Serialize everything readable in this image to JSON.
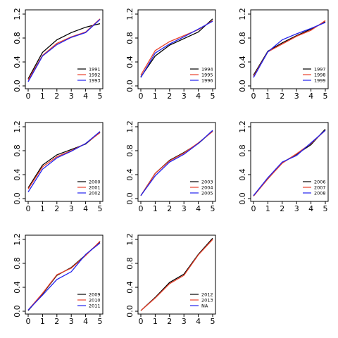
{
  "chart_data": [
    {
      "type": "line",
      "x": [
        0,
        1,
        2,
        3,
        4,
        5
      ],
      "xlim": [
        0,
        5
      ],
      "ylim": [
        0,
        1.2
      ],
      "xticks": [
        "0",
        "1",
        "2",
        "3",
        "4",
        "5"
      ],
      "yticks": [
        "0.0",
        "0.4",
        "0.8",
        "1.2"
      ],
      "legend_position": "bottom-right",
      "series": [
        {
          "name": "1991",
          "color": "#000000",
          "values": [
            0.12,
            0.56,
            0.77,
            0.89,
            0.98,
            1.04
          ]
        },
        {
          "name": "1992",
          "color": "#e8412b",
          "values": [
            0.1,
            0.51,
            0.71,
            0.82,
            0.9,
            1.12
          ]
        },
        {
          "name": "1993",
          "color": "#2222ee",
          "values": [
            0.07,
            0.5,
            0.69,
            0.81,
            0.89,
            1.11
          ]
        }
      ]
    },
    {
      "type": "line",
      "x": [
        0,
        1,
        2,
        3,
        4,
        5
      ],
      "xlim": [
        0,
        5
      ],
      "ylim": [
        0,
        1.2
      ],
      "xticks": [
        "0",
        "1",
        "2",
        "3",
        "4",
        "5"
      ],
      "yticks": [
        "0.0",
        "0.4",
        "0.8",
        "1.2"
      ],
      "legend_position": "bottom-right",
      "series": [
        {
          "name": "1994",
          "color": "#000000",
          "values": [
            0.15,
            0.5,
            0.68,
            0.79,
            0.9,
            1.12
          ]
        },
        {
          "name": "1995",
          "color": "#e8412b",
          "values": [
            0.18,
            0.59,
            0.74,
            0.84,
            0.94,
            1.09
          ]
        },
        {
          "name": "1996",
          "color": "#2222ee",
          "values": [
            0.14,
            0.55,
            0.7,
            0.82,
            0.95,
            1.08
          ]
        }
      ]
    },
    {
      "type": "line",
      "x": [
        0,
        1,
        2,
        3,
        4,
        5
      ],
      "xlim": [
        0,
        5
      ],
      "ylim": [
        0,
        1.2
      ],
      "xticks": [
        "0",
        "1",
        "2",
        "3",
        "4",
        "5"
      ],
      "yticks": [
        "0.0",
        "0.4",
        "0.8",
        "1.2"
      ],
      "legend_position": "bottom-right",
      "series": [
        {
          "name": "1997",
          "color": "#000000",
          "values": [
            0.18,
            0.58,
            0.72,
            0.84,
            0.95,
            1.07
          ]
        },
        {
          "name": "1998",
          "color": "#e8412b",
          "values": [
            0.16,
            0.57,
            0.7,
            0.83,
            0.93,
            1.09
          ]
        },
        {
          "name": "1999",
          "color": "#2222ee",
          "values": [
            0.14,
            0.57,
            0.77,
            0.87,
            0.96,
            1.06
          ]
        }
      ]
    },
    {
      "type": "line",
      "x": [
        0,
        1,
        2,
        3,
        4,
        5
      ],
      "xlim": [
        0,
        5
      ],
      "ylim": [
        0,
        1.2
      ],
      "xticks": [
        "0",
        "1",
        "2",
        "3",
        "4",
        "5"
      ],
      "yticks": [
        "0.0",
        "0.4",
        "0.8",
        "1.2"
      ],
      "legend_position": "bottom-right",
      "series": [
        {
          "name": "2000",
          "color": "#000000",
          "values": [
            0.18,
            0.56,
            0.73,
            0.82,
            0.91,
            1.11
          ]
        },
        {
          "name": "2001",
          "color": "#e8412b",
          "values": [
            0.16,
            0.53,
            0.7,
            0.8,
            0.92,
            1.1
          ]
        },
        {
          "name": "2002",
          "color": "#2222ee",
          "values": [
            0.11,
            0.49,
            0.68,
            0.79,
            0.92,
            1.12
          ]
        }
      ]
    },
    {
      "type": "line",
      "x": [
        0,
        1,
        2,
        3,
        4,
        5
      ],
      "xlim": [
        0,
        5
      ],
      "ylim": [
        0,
        1.2
      ],
      "xticks": [
        "0",
        "1",
        "2",
        "3",
        "4",
        "5"
      ],
      "yticks": [
        "0.0",
        "0.4",
        "0.8",
        "1.2"
      ],
      "legend_position": "bottom-right",
      "series": [
        {
          "name": "2003",
          "color": "#000000",
          "values": [
            0.05,
            0.42,
            0.64,
            0.77,
            0.92,
            1.13
          ]
        },
        {
          "name": "2004",
          "color": "#e8412b",
          "values": [
            0.05,
            0.42,
            0.63,
            0.76,
            0.93,
            1.12
          ]
        },
        {
          "name": "2005",
          "color": "#2222ee",
          "values": [
            0.05,
            0.38,
            0.61,
            0.74,
            0.92,
            1.14
          ]
        }
      ]
    },
    {
      "type": "line",
      "x": [
        0,
        1,
        2,
        3,
        4,
        5
      ],
      "xlim": [
        0,
        5
      ],
      "ylim": [
        0,
        1.2
      ],
      "xticks": [
        "0",
        "1",
        "2",
        "3",
        "4",
        "5"
      ],
      "yticks": [
        "0.0",
        "0.4",
        "0.8",
        "1.2"
      ],
      "legend_position": "bottom-right",
      "series": [
        {
          "name": "2006",
          "color": "#000000",
          "values": [
            0.05,
            0.33,
            0.6,
            0.74,
            0.9,
            1.16
          ]
        },
        {
          "name": "2007",
          "color": "#e8412b",
          "values": [
            0.04,
            0.33,
            0.59,
            0.75,
            0.92,
            1.14
          ]
        },
        {
          "name": "2008",
          "color": "#2222ee",
          "values": [
            0.05,
            0.35,
            0.61,
            0.72,
            0.93,
            1.14
          ]
        }
      ]
    },
    {
      "type": "line",
      "x": [
        0,
        1,
        2,
        3,
        4,
        5
      ],
      "xlim": [
        0,
        5
      ],
      "ylim": [
        0,
        1.2
      ],
      "xticks": [
        "0",
        "1",
        "2",
        "3",
        "4",
        "5"
      ],
      "yticks": [
        "0.0",
        "0.4",
        "0.8",
        "1.2"
      ],
      "legend_position": "bottom-right",
      "series": [
        {
          "name": "2009",
          "color": "#000000",
          "values": [
            0.01,
            0.29,
            0.6,
            0.73,
            0.94,
            1.16
          ]
        },
        {
          "name": "2010",
          "color": "#e8412b",
          "values": [
            0.02,
            0.3,
            0.61,
            0.72,
            0.93,
            1.17
          ]
        },
        {
          "name": "2011",
          "color": "#2222ee",
          "values": [
            0.02,
            0.27,
            0.53,
            0.66,
            0.95,
            1.14
          ]
        }
      ]
    },
    {
      "type": "line",
      "x": [
        0,
        1,
        2,
        3,
        4,
        5
      ],
      "xlim": [
        0,
        5
      ],
      "ylim": [
        0,
        1.2
      ],
      "xticks": [
        "0",
        "1",
        "2",
        "3",
        "4",
        "5"
      ],
      "yticks": [
        "0.0",
        "0.4",
        "0.8",
        "1.2"
      ],
      "legend_position": "bottom-right",
      "series": [
        {
          "name": "2012",
          "color": "#000000",
          "values": [
            0.01,
            0.23,
            0.48,
            0.62,
            0.95,
            1.22
          ]
        },
        {
          "name": "2013",
          "color": "#e8412b",
          "values": [
            0.01,
            0.22,
            0.46,
            0.6,
            0.94,
            1.2
          ]
        },
        {
          "name": "NA",
          "color": "#2222ee",
          "values": [
            null,
            null,
            null,
            null,
            null,
            null
          ]
        }
      ]
    }
  ]
}
